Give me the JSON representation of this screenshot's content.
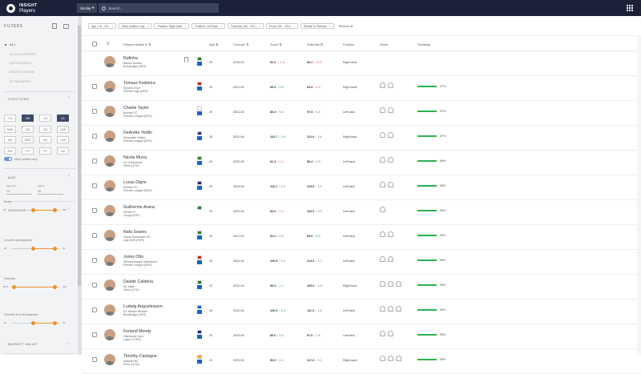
{
  "app": {
    "brand_top": "INSIGHT",
    "brand_bottom": "Players",
    "similar_button": "Similar",
    "search_placeholder": "Search..."
  },
  "sidebar": {
    "title": "FILTERS",
    "categories": [
      "ALL",
      "GOALKEEPERS",
      "DEFENDERS",
      "MIDFIELDERS",
      "ATTACKERS"
    ],
    "positions_title": "POSITIONS",
    "positions": [
      "CB",
      "RB",
      "LB",
      "RWB",
      "CM",
      "LWB",
      "AM",
      "RMD",
      "LMD",
      "RW",
      "CF",
      "LW"
    ],
    "selected_positions": [
      "RB",
      "LB"
    ],
    "main_position_only": "Main position only",
    "age_title": "AGE",
    "age_from_label": "Age from",
    "age_to_label": "Age to",
    "age_from": "15",
    "age_to": "25",
    "scoring_title": "SCORING",
    "sliders": [
      {
        "label": "Scout",
        "min": "20",
        "max": "100",
        "lo": 0.45,
        "hi": 0.9
      },
      {
        "label": "6 month development",
        "min": "-20",
        "max": "30",
        "lo": 0.45,
        "hi": 0.9
      },
      {
        "label": "Potential",
        "min": "68.9",
        "max": "100",
        "lo": 0.05,
        "hi": 0.9
      },
      {
        "label": "Potential 6 m development",
        "min": "-20",
        "max": "30",
        "lo": 0.45,
        "hi": 0.9
      }
    ],
    "market_value_title": "MARKET VALUE"
  },
  "filters": [
    "Age ( 15 - 25 )",
    "Main position only",
    "Position: Right back",
    "Position: Left back",
    "Potential ( 85 - 100 )",
    "Scout ( 80 - 100 )",
    "Similar to: Rafinha",
    "Remove all"
  ],
  "table": {
    "columns": {
      "name": "Players similar to",
      "age": "Age",
      "contract": "Contract",
      "scout": "Scout",
      "potential": "Potential",
      "position": "Position",
      "roles": "Roles",
      "similarity": "Similarity"
    },
    "rows": [
      {
        "name": "Rafinha",
        "club": "Bayern Munich",
        "league": "Bundesliga (GER)",
        "age": "29",
        "contract": "2019-06",
        "scout": "92.2",
        "scout_d": "-1.5",
        "scout_dir": "down",
        "pot": "96.2",
        "pot_d": "-0.3",
        "pot_dir": "down",
        "position": "Right back",
        "roles": 0,
        "similarity": "",
        "flag1": "#2e7d32",
        "flag2": "#1565c0"
      },
      {
        "name": "Tomasz Kedziora",
        "club": "Dynamo Kyiv",
        "league": "Premier Liga (UKR)",
        "age": "24",
        "contract": "2021-06",
        "scout": "83.9",
        "scout_d": "0.6",
        "scout_dir": "up",
        "pot": "94.5",
        "pot_d": "4.6",
        "pot_dir": "down",
        "position": "Right back",
        "roles": 2,
        "similarity": "97%",
        "flag1": "#c62828",
        "flag2": "#1565c0"
      },
      {
        "name": "Charlie Taylor",
        "club": "Burnley FC",
        "league": "Premier League (ENG)",
        "age": "25",
        "contract": "2021-06",
        "scout": "80.3",
        "scout_d": "5.6",
        "scout_dir": "up",
        "pot": "97.5",
        "pot_d": "6.8",
        "pot_dir": "up",
        "position": "Left back",
        "roles": 2,
        "similarity": "97%",
        "flag1": "#ffffff",
        "flag2": "#1565c0"
      },
      {
        "name": "DeAndre Yedlin",
        "club": "Newcastle United",
        "league": "Premier League (ENG)",
        "age": "25",
        "contract": "2022-06",
        "scout": "102.7",
        "scout_d": "3.6",
        "scout_dir": "up",
        "pot": "112.6",
        "pot_d": "3.6",
        "pot_dir": "up",
        "position": "Right back",
        "roles": 2,
        "similarity": "97%",
        "flag1": "#283593",
        "flag2": "#1565c0"
      },
      {
        "name": "Nicola Murru",
        "club": "UC Sampdoria",
        "league": "Serie A (ITA)",
        "age": "24",
        "contract": "2022-06",
        "scout": "81.3",
        "scout_d": "0.1",
        "scout_dir": "down",
        "pot": "90.4",
        "pot_d": "0.3",
        "pot_dir": "up",
        "position": "Left back",
        "roles": 2,
        "similarity": "96%",
        "flag1": "#2e7d32",
        "flag2": "#1565c0"
      },
      {
        "name": "Lucas Digne",
        "club": "Everton FC",
        "league": "Premier League (ENG)",
        "age": "25",
        "contract": "2023-06",
        "scout": "110.1",
        "scout_d": "4.3",
        "scout_dir": "up",
        "pot": "119.0",
        "pot_d": "3.2",
        "pot_dir": "up",
        "position": "Left back",
        "roles": 2,
        "similarity": "96%",
        "flag1": "#1a237e",
        "flag2": "#1565c0"
      },
      {
        "name": "Guilherme Arana",
        "club": "Sevilla FC",
        "league": "LaLiga (ESP)",
        "age": "22",
        "contract": "2022-06",
        "scout": "82.9",
        "scout_d": "0.4",
        "scout_dir": "down",
        "pot": "116.0",
        "pot_d": "0.0",
        "pot_dir": "up",
        "position": "Left back",
        "roles": 1,
        "similarity": "95%",
        "flag1": "#2e7d32",
        "flag2": ""
      },
      {
        "name": "Rafa Soares",
        "club": "Vitória Guimarães SC",
        "league": "Liga NOS (POR)",
        "age": "24",
        "contract": "2021-06",
        "scout": "81.2",
        "scout_d": "4.3",
        "scout_dir": "up",
        "pot": "95.6",
        "pot_d": "5.6",
        "pot_dir": "up",
        "position": "Left back",
        "roles": 2,
        "similarity": "95%",
        "flag1": "#2e7d32",
        "flag2": "#1565c0"
      },
      {
        "name": "Jonny Otto",
        "club": "Wolverhampton Wanderers",
        "league": "Premier League (ENG)",
        "age": "25",
        "contract": "2023-06",
        "scout": "100.9",
        "scout_d": "2.2",
        "scout_dir": "up",
        "pot": "113.3",
        "pot_d": "2.7",
        "pot_dir": "up",
        "position": "Left back",
        "roles": 2,
        "similarity": "95%",
        "flag1": "#c62828",
        "flag2": "#1565c0"
      },
      {
        "name": "Davide Calabria",
        "club": "AC Milan",
        "league": "Serie A (ITA)",
        "age": "22",
        "contract": "2022-06",
        "scout": "86.2",
        "scout_d": "1.2",
        "scout_dir": "up",
        "pot": "106.0",
        "pot_d": "3.8",
        "pot_dir": "up",
        "position": "Right back",
        "roles": 3,
        "similarity": "95%",
        "flag1": "#2e7d32",
        "flag2": "#1565c0"
      },
      {
        "name": "Ludwig Augustinsson",
        "club": "SV Werder Bremen",
        "league": "Bundesliga (GER)",
        "age": "25",
        "contract": "2022-06",
        "scout": "100.2",
        "scout_d": "4.3",
        "scout_dir": "up",
        "pot": "111.3",
        "pot_d": "1.5",
        "pot_dir": "up",
        "position": "Left back",
        "roles": 3,
        "similarity": "95%",
        "flag1": "#1565c0",
        "flag2": "#1565c0"
      },
      {
        "name": "Ferland Mendy",
        "club": "Olympique Lyon",
        "league": "Ligue 1 (FRA)",
        "age": "23",
        "contract": "2023-06",
        "scout": "80.0",
        "scout_d": "4.6",
        "scout_dir": "up",
        "pot": "97.0",
        "pot_d": "1.6",
        "pot_dir": "up",
        "position": "Left back",
        "roles": 2,
        "similarity": "95%",
        "flag1": "#1a237e",
        "flag2": "#1565c0"
      },
      {
        "name": "Timothy Castagne",
        "club": "Atalanta BC",
        "league": "Serie A (ITA)",
        "age": "23",
        "contract": "2020-06",
        "scout": "96.9",
        "scout_d": "0.1",
        "scout_dir": "up",
        "pot": "117.6",
        "pot_d": "0.1",
        "pot_dir": "up",
        "position": "Right back",
        "roles": 3,
        "similarity": "95%",
        "flag1": "#f9a825",
        "flag2": "#1565c0"
      }
    ]
  }
}
